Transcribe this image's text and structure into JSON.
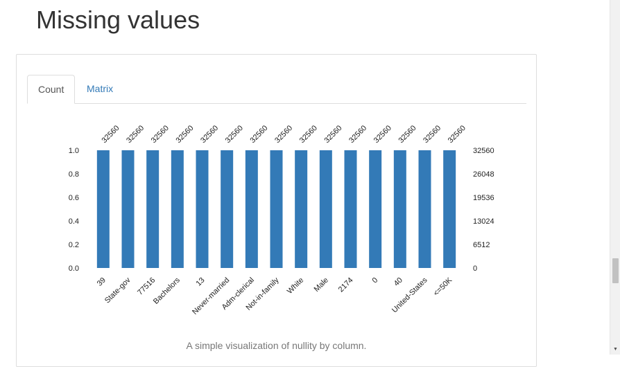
{
  "page": {
    "title": "Missing values"
  },
  "tabs": [
    {
      "label": "Count",
      "active": true
    },
    {
      "label": "Matrix",
      "active": false
    }
  ],
  "caption": "A simple visualization of nullity by column.",
  "colors": {
    "bar": "#337ab7",
    "link": "#337ab7"
  },
  "chart_data": {
    "type": "bar",
    "categories": [
      "39",
      "State-gov",
      "77516",
      "Bachelors",
      "13",
      "Never-married",
      "Adm-clerical",
      "Not-in-family",
      "White",
      "Male",
      "2174",
      "0",
      "40",
      "United-States",
      "<=50K"
    ],
    "values": [
      1.0,
      1.0,
      1.0,
      1.0,
      1.0,
      1.0,
      1.0,
      1.0,
      1.0,
      1.0,
      1.0,
      1.0,
      1.0,
      1.0,
      1.0
    ],
    "counts": [
      "32560",
      "32560",
      "32560",
      "32560",
      "32560",
      "32560",
      "32560",
      "32560",
      "32560",
      "32560",
      "32560",
      "32560",
      "32560",
      "32560",
      "32560"
    ],
    "ylim": [
      0,
      1.0
    ],
    "left_ticks": [
      "0.0",
      "0.2",
      "0.4",
      "0.6",
      "0.8",
      "1.0"
    ],
    "right_ticks": [
      "0",
      "6512",
      "13024",
      "19536",
      "26048",
      "32560"
    ],
    "grid": false,
    "legend": "none"
  }
}
